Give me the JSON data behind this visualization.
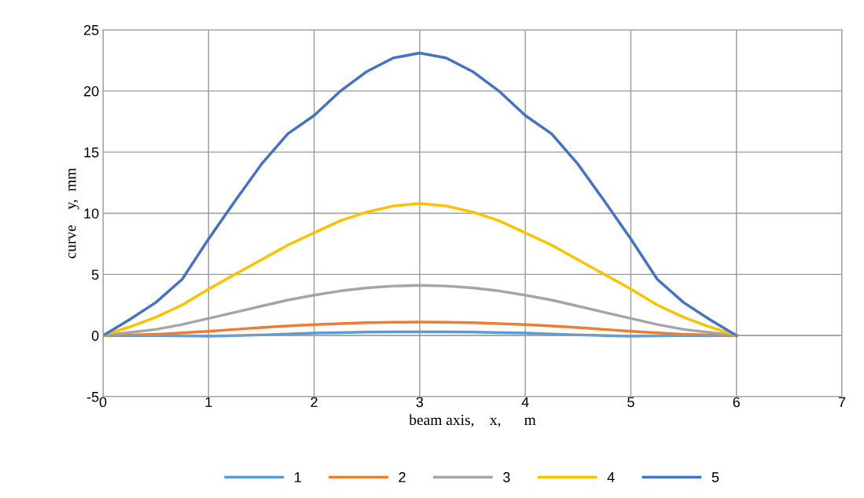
{
  "chart_data": {
    "type": "line",
    "xlabel": "beam axis,    x,      m",
    "ylabel": "curve    y,  mm",
    "x": [
      0,
      0.25,
      0.5,
      0.75,
      1,
      1.25,
      1.5,
      1.75,
      2,
      2.25,
      2.5,
      2.75,
      3,
      3.25,
      3.5,
      3.75,
      4,
      4.25,
      4.5,
      4.75,
      5,
      5.25,
      5.5,
      5.75,
      6
    ],
    "series": [
      {
        "name": "1",
        "color": "#5b9bd5",
        "values": [
          0,
          0,
          0,
          -0.03,
          -0.05,
          0,
          0.05,
          0.12,
          0.2,
          0.24,
          0.28,
          0.3,
          0.3,
          0.3,
          0.28,
          0.24,
          0.2,
          0.12,
          0.05,
          0,
          -0.05,
          -0.03,
          0,
          0,
          0
        ]
      },
      {
        "name": "2",
        "color": "#ed7d31",
        "values": [
          0,
          0.05,
          0.1,
          0.22,
          0.35,
          0.5,
          0.65,
          0.78,
          0.9,
          0.98,
          1.05,
          1.08,
          1.1,
          1.08,
          1.05,
          0.98,
          0.9,
          0.78,
          0.65,
          0.5,
          0.35,
          0.22,
          0.1,
          0.05,
          0
        ]
      },
      {
        "name": "3",
        "color": "#a5a5a5",
        "values": [
          0,
          0.25,
          0.5,
          0.9,
          1.4,
          1.9,
          2.4,
          2.9,
          3.3,
          3.65,
          3.9,
          4.05,
          4.1,
          4.05,
          3.9,
          3.65,
          3.3,
          2.9,
          2.4,
          1.9,
          1.4,
          0.9,
          0.5,
          0.25,
          0
        ]
      },
      {
        "name": "4",
        "color": "#ffc000",
        "values": [
          0,
          0.7,
          1.5,
          2.5,
          3.8,
          5.0,
          6.2,
          7.4,
          8.4,
          9.4,
          10.1,
          10.6,
          10.8,
          10.6,
          10.1,
          9.4,
          8.4,
          7.4,
          6.2,
          5.0,
          3.8,
          2.5,
          1.5,
          0.7,
          0
        ]
      },
      {
        "name": "5",
        "color": "#4472c4",
        "values": [
          0,
          1.3,
          2.7,
          4.6,
          7.9,
          11,
          14,
          16.5,
          18,
          20,
          21.6,
          22.7,
          23.1,
          22.7,
          21.6,
          20,
          18,
          16.5,
          14,
          11,
          7.9,
          4.6,
          2.7,
          1.3,
          0
        ]
      }
    ],
    "xlim": [
      0,
      7
    ],
    "xticks": [
      0,
      1,
      2,
      3,
      4,
      5,
      6,
      7
    ],
    "ylim": [
      -5,
      25
    ],
    "yticks": [
      -5,
      0,
      5,
      10,
      15,
      20,
      25
    ],
    "grid": true,
    "legend": "bottom",
    "marker": "none",
    "line_style": "solid"
  }
}
